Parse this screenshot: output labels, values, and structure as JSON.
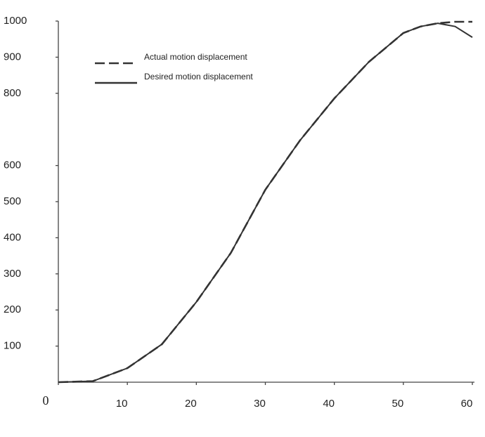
{
  "chart_data": {
    "type": "line",
    "x": [
      0,
      5,
      10,
      15,
      20,
      25,
      30,
      35,
      40,
      45,
      50,
      52.5,
      55,
      57.5,
      60
    ],
    "series": [
      {
        "name": "Actual motion displacement",
        "color": "#333333",
        "dash": true,
        "values": [
          0,
          3,
          39,
          105,
          222,
          358,
          533,
          669,
          786,
          887,
          967,
          985,
          994,
          998,
          998
        ]
      },
      {
        "name": "Desired motion displacement",
        "color": "#333333",
        "dash": false,
        "values": [
          0,
          3,
          39,
          105,
          222,
          358,
          533,
          669,
          786,
          887,
          967,
          985,
          994,
          985,
          955
        ]
      }
    ],
    "xlim": [
      0,
      60
    ],
    "ylim": [
      0,
      1000
    ],
    "xticks": [
      0,
      10,
      20,
      30,
      40,
      50,
      60
    ],
    "yticks": [
      100,
      200,
      300,
      400,
      500,
      600,
      800,
      900,
      1000
    ],
    "grid": false,
    "legend": "upper-left"
  }
}
